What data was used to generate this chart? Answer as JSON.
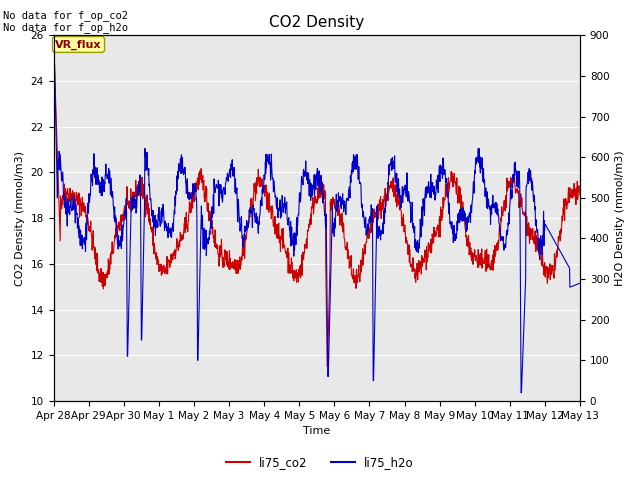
{
  "title": "CO2 Density",
  "xlabel": "Time",
  "ylabel_left": "CO2 Density (mmol/m3)",
  "ylabel_right": "H2O Density (mmol/m3)",
  "top_text": "No data for f_op_co2\nNo data for f_op_h2o",
  "legend_box_label": "VR_flux",
  "ylim_left": [
    10,
    26
  ],
  "ylim_right": [
    0,
    900
  ],
  "yticks_left": [
    10,
    12,
    14,
    16,
    18,
    20,
    22,
    24,
    26
  ],
  "yticks_right": [
    0,
    100,
    200,
    300,
    400,
    500,
    600,
    700,
    800,
    900
  ],
  "color_co2": "#cc0000",
  "color_h2o": "#0000cc",
  "background_color": "#e8e8e8",
  "line_width": 0.8,
  "x_tick_labels": [
    "Apr 28",
    "Apr 29",
    "Apr 30",
    "May 1",
    "May 2",
    "May 3",
    "May 4",
    "May 5",
    "May 6",
    "May 7",
    "May 8",
    "May 9",
    "May 10",
    "May 11",
    "May 12",
    "May 13"
  ],
  "legend_labels": [
    "li75_co2",
    "li75_h2o"
  ]
}
